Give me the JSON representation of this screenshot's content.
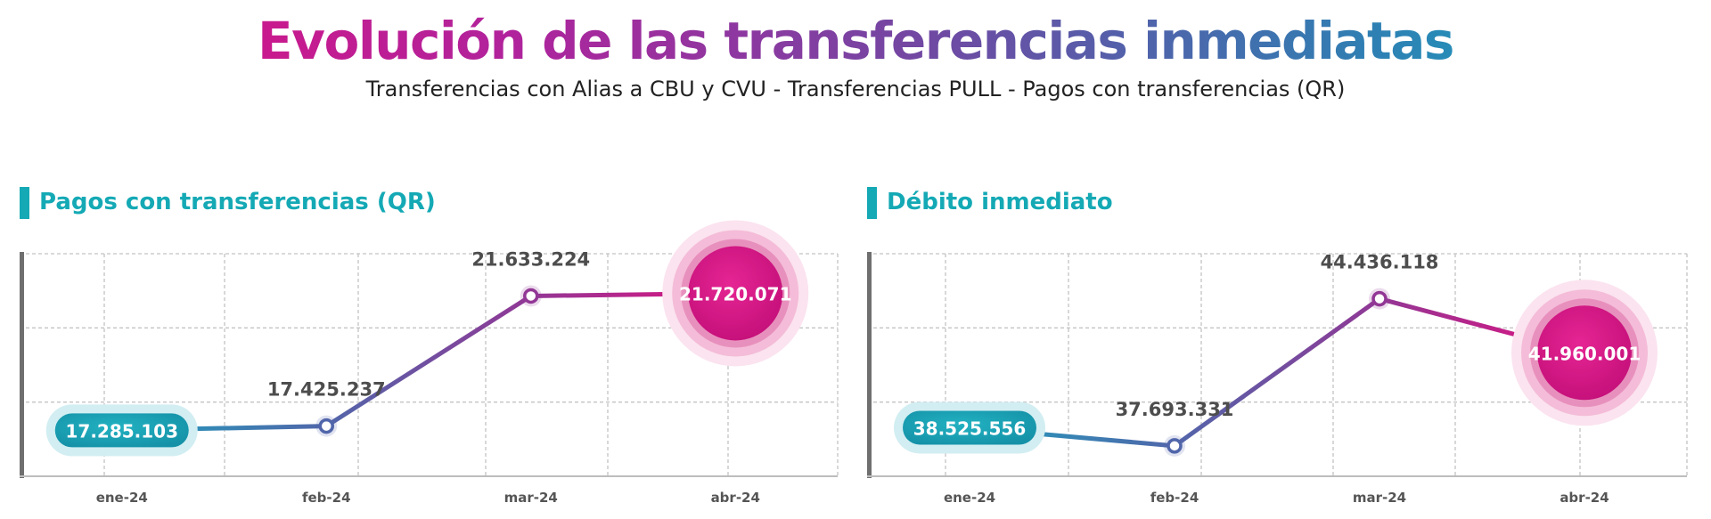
{
  "header": {
    "title": "Evolución de las transferencias inmediatas",
    "subtitle": "Transferencias con Alias a CBU y CVU - Transferencias PULL - Pagos con transferencias (QR)"
  },
  "colors": {
    "accent": "#14a9b5",
    "start": "#1e9fbd",
    "mid": "#6a4aa0",
    "end": "#e2117f",
    "label_text": "#4d4d4d",
    "grid": "#c4c4c4"
  },
  "chart_data": [
    {
      "type": "line",
      "title": "Pagos con transferencias (QR)",
      "categories": [
        "ene-24",
        "feb-24",
        "mar-24",
        "abr-24"
      ],
      "values": [
        17285103,
        17425237,
        21633224,
        21720071
      ],
      "value_labels": [
        "17.285.103",
        "17.425.237",
        "21.633.224",
        "21.720.071"
      ],
      "highlight_first": true,
      "highlight_last": true,
      "xlabel": "",
      "ylabel": "",
      "grid": true,
      "legend": "none"
    },
    {
      "type": "line",
      "title": "Débito inmediato",
      "categories": [
        "ene-24",
        "feb-24",
        "mar-24",
        "abr-24"
      ],
      "values": [
        38525556,
        37693331,
        44436118,
        41960001
      ],
      "value_labels": [
        "38.525.556",
        "37.693.331",
        "44.436.118",
        "41.960.001"
      ],
      "highlight_first": true,
      "highlight_last": true,
      "xlabel": "",
      "ylabel": "",
      "grid": true,
      "legend": "none"
    }
  ]
}
